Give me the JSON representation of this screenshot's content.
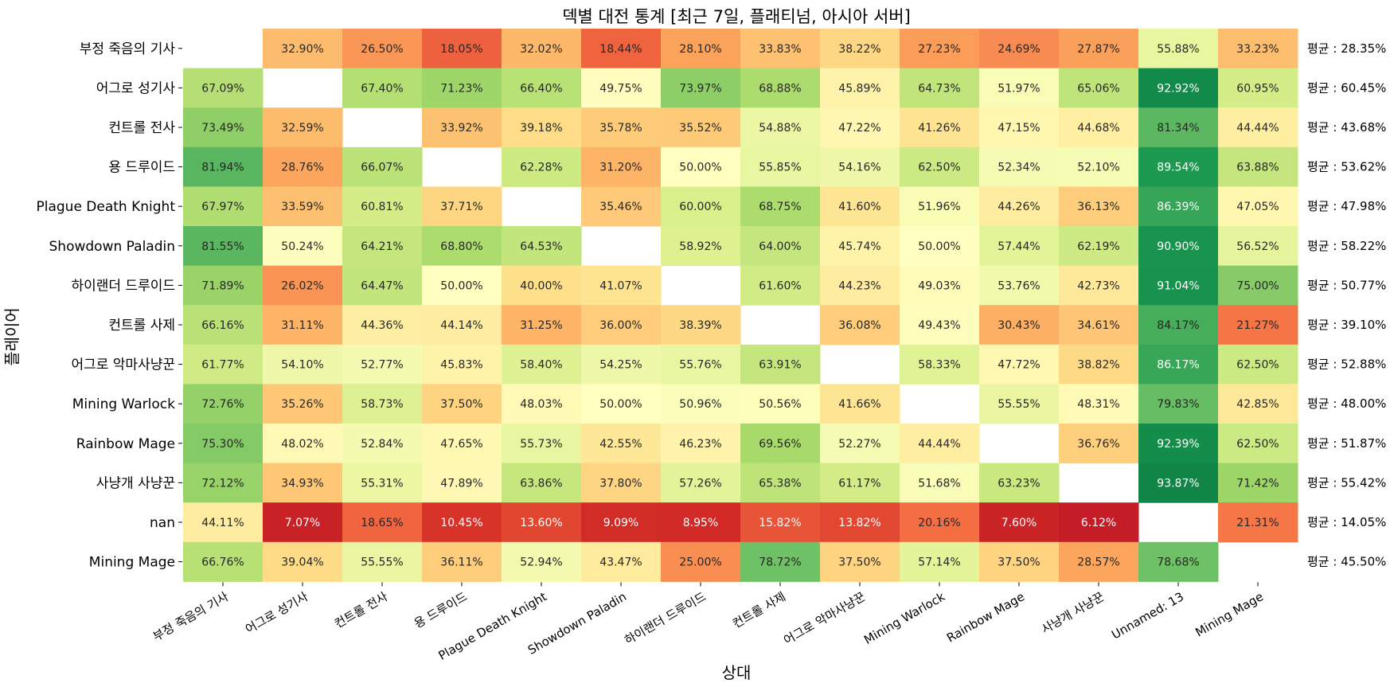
{
  "chart_data": {
    "type": "heatmap",
    "title": "덱별 대전 통계 [최근 7일, 플래티넘, 아시아 서버]",
    "xlabel": "상대",
    "ylabel": "플레이어",
    "x_categories": [
      "부정 죽음의 기사",
      "어그로 성기사",
      "컨트롤 전사",
      "용 드루이드",
      "Plague Death Knight",
      "Showdown Paladin",
      "하이랜더 드루이드",
      "컨트롤 사제",
      "어그로 악마사냥꾼",
      "Mining Warlock",
      "Rainbow Mage",
      "사냥개 사냥꾼",
      "Unnamed: 13",
      "Mining Mage"
    ],
    "y_categories": [
      "부정 죽음의 기사",
      "어그로 성기사",
      "컨트롤 전사",
      "용 드루이드",
      "Plague Death Knight",
      "Showdown Paladin",
      "하이랜더 드루이드",
      "컨트롤 사제",
      "어그로 악마사냥꾼",
      "Mining Warlock",
      "Rainbow Mage",
      "사냥개 사냥꾼",
      "nan",
      "Mining Mage"
    ],
    "values": [
      [
        null,
        32.9,
        26.5,
        18.05,
        32.02,
        18.44,
        28.1,
        33.83,
        38.22,
        27.23,
        24.69,
        27.87,
        55.88,
        33.23
      ],
      [
        67.09,
        null,
        67.4,
        71.23,
        66.4,
        49.75,
        73.97,
        68.88,
        45.89,
        64.73,
        51.97,
        65.06,
        92.92,
        60.95
      ],
      [
        73.49,
        32.59,
        null,
        33.92,
        39.18,
        35.78,
        35.52,
        54.88,
        47.22,
        41.26,
        47.15,
        44.68,
        81.34,
        44.44
      ],
      [
        81.94,
        28.76,
        66.07,
        null,
        62.28,
        31.2,
        50.0,
        55.85,
        54.16,
        62.5,
        52.34,
        52.1,
        89.54,
        63.88
      ],
      [
        67.97,
        33.59,
        60.81,
        37.71,
        null,
        35.46,
        60.0,
        68.75,
        41.6,
        51.96,
        44.26,
        36.13,
        86.39,
        47.05
      ],
      [
        81.55,
        50.24,
        64.21,
        68.8,
        64.53,
        null,
        58.92,
        64.0,
        45.74,
        50.0,
        57.44,
        62.19,
        90.9,
        56.52
      ],
      [
        71.89,
        26.02,
        64.47,
        50.0,
        40.0,
        41.07,
        null,
        61.6,
        44.23,
        49.03,
        53.76,
        42.73,
        91.04,
        75.0
      ],
      [
        66.16,
        31.11,
        44.36,
        44.14,
        31.25,
        36.0,
        38.39,
        null,
        36.08,
        49.43,
        30.43,
        34.61,
        84.17,
        21.27
      ],
      [
        61.77,
        54.1,
        52.77,
        45.83,
        58.4,
        54.25,
        55.76,
        63.91,
        null,
        58.33,
        47.72,
        38.82,
        86.17,
        62.5
      ],
      [
        72.76,
        35.26,
        58.73,
        37.5,
        48.03,
        50.0,
        50.96,
        50.56,
        41.66,
        null,
        55.55,
        48.31,
        79.83,
        42.85
      ],
      [
        75.3,
        48.02,
        52.84,
        47.65,
        55.73,
        42.55,
        46.23,
        69.56,
        52.27,
        44.44,
        null,
        36.76,
        92.39,
        62.5
      ],
      [
        72.12,
        34.93,
        55.31,
        47.89,
        63.86,
        37.8,
        57.26,
        65.38,
        61.17,
        51.68,
        63.23,
        null,
        93.87,
        71.42
      ],
      [
        44.11,
        7.07,
        18.65,
        10.45,
        13.6,
        9.09,
        8.95,
        15.82,
        13.82,
        20.16,
        7.6,
        6.12,
        null,
        21.31
      ],
      [
        66.76,
        39.04,
        55.55,
        36.11,
        52.94,
        43.47,
        25.0,
        78.72,
        37.5,
        57.14,
        37.5,
        28.57,
        78.68,
        null
      ]
    ],
    "row_average_labels": [
      "평균 : 28.35%",
      "평균 : 60.45%",
      "평균 : 43.68%",
      "평균 : 53.62%",
      "평균 : 47.98%",
      "평균 : 58.22%",
      "평균 : 50.77%",
      "평균 : 39.10%",
      "평균 : 52.88%",
      "평균 : 48.00%",
      "평균 : 51.87%",
      "평균 : 55.42%",
      "평균 : 14.05%",
      "평균 : 45.50%"
    ],
    "value_suffix": "%",
    "colormap": "RdYlGn",
    "color_range": [
      0,
      100
    ],
    "colorbar": false,
    "grid": false,
    "legend": "none"
  }
}
